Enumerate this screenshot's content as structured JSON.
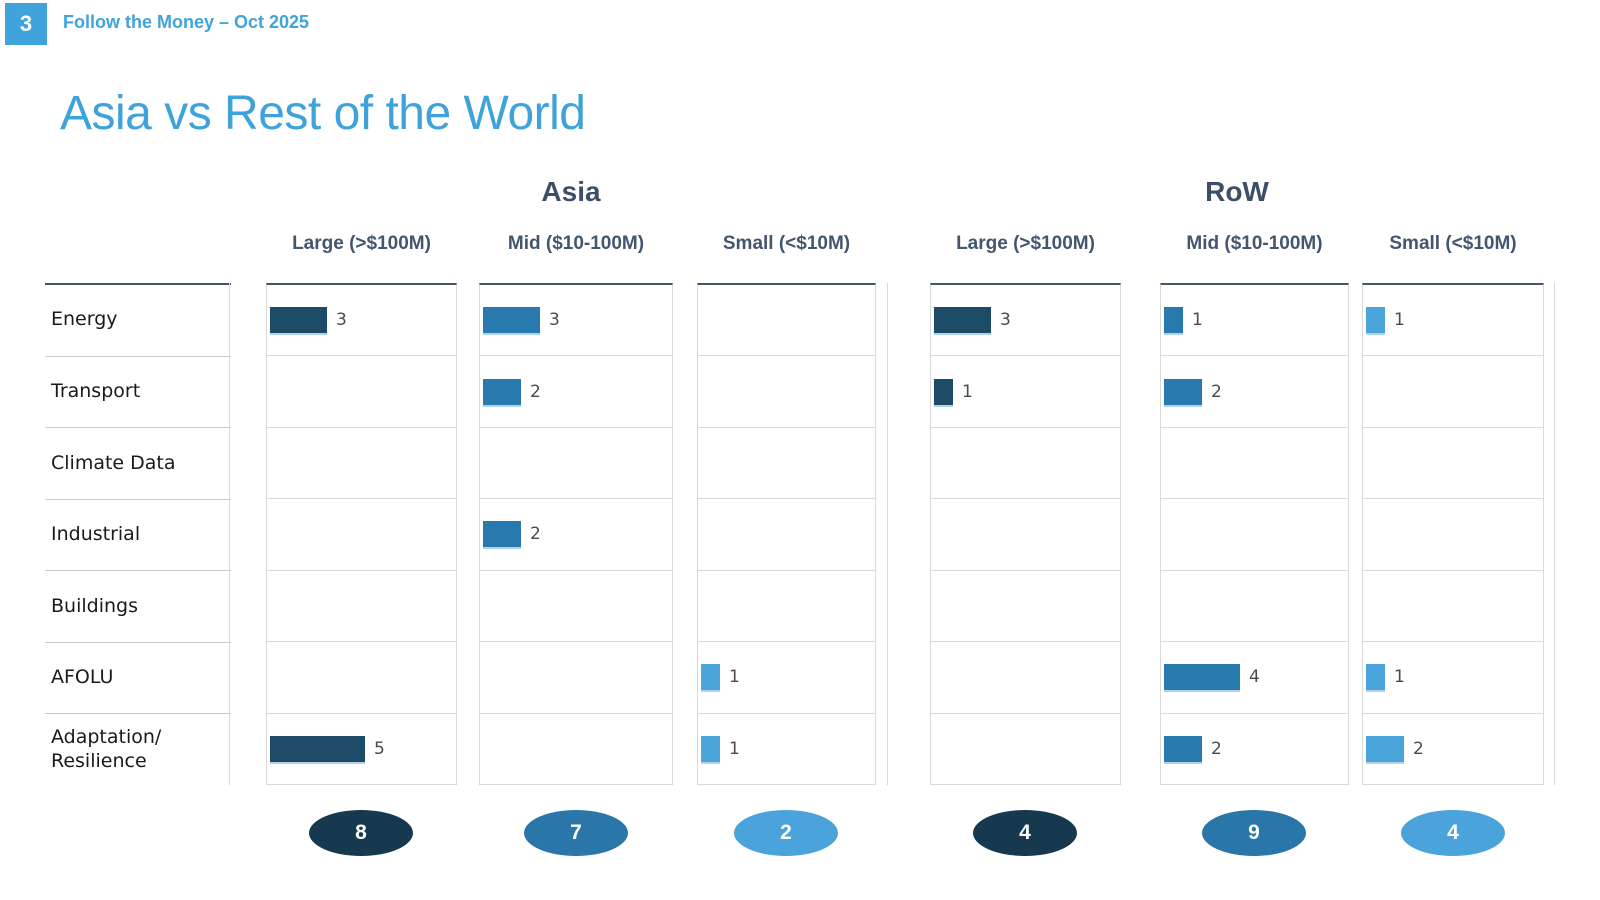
{
  "page": {
    "number": "3",
    "deck_title": "Follow the Money – Oct 2025",
    "slide_title": "Asia vs Rest of the World"
  },
  "colors": {
    "accent_blue": "#41a3dc",
    "header_slate": "#44566f",
    "bar_large": "#1d4a66",
    "bar_mid": "#2879ad",
    "bar_small": "#4ba5db",
    "badge_large": "#16394f",
    "badge_mid": "#2b76a8",
    "badge_small": "#4aa3da"
  },
  "chart_data": {
    "type": "bar",
    "title": "Asia vs Rest of the World",
    "orientation": "horizontal",
    "legend": "none",
    "groups": [
      "Asia",
      "RoW"
    ],
    "categories": [
      "Energy",
      "Transport",
      "Climate Data",
      "Industrial",
      "Buildings",
      "AFOLU",
      "Adaptation/\nResilience"
    ],
    "series": [
      {
        "group": "Asia",
        "bucket": "Large (>$100M)",
        "values": [
          3,
          0,
          0,
          0,
          0,
          0,
          5
        ],
        "total": 8
      },
      {
        "group": "Asia",
        "bucket": "Mid ($10-100M)",
        "values": [
          3,
          2,
          0,
          2,
          0,
          0,
          0
        ],
        "total": 7
      },
      {
        "group": "Asia",
        "bucket": "Small (<$10M)",
        "values": [
          0,
          0,
          0,
          0,
          0,
          1,
          1
        ],
        "total": 2
      },
      {
        "group": "RoW",
        "bucket": "Large (>$100M)",
        "values": [
          3,
          1,
          0,
          0,
          0,
          0,
          0
        ],
        "total": 4
      },
      {
        "group": "RoW",
        "bucket": "Mid ($10-100M)",
        "values": [
          1,
          2,
          0,
          0,
          0,
          4,
          2
        ],
        "total": 9
      },
      {
        "group": "RoW",
        "bucket": "Small (<$10M)",
        "values": [
          1,
          0,
          0,
          0,
          0,
          1,
          2
        ],
        "total": 4
      }
    ]
  }
}
